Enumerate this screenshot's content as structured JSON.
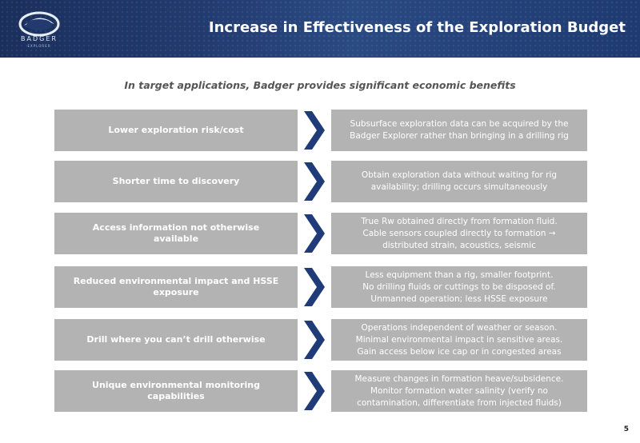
{
  "header": {
    "title": "Increase in Effectiveness of the Exploration Budget",
    "logo_text": "BADGER",
    "logo_subtext": "EXPLORER"
  },
  "subtitle": "In target applications, Badger provides significant economic benefits",
  "rows": [
    {
      "benefit": "Lower exploration risk/cost",
      "detail_lines": [
        "Subsurface exploration data can be acquired by the",
        "Badger Explorer rather than bringing in a drilling rig"
      ]
    },
    {
      "benefit": "Shorter time to discovery",
      "detail_lines": [
        "Obtain exploration data without waiting for rig",
        "availability; drilling occurs simultaneously"
      ]
    },
    {
      "benefit": "Access information not otherwise available",
      "detail_lines": [
        "True Rw obtained directly from formation fluid.",
        "Cable sensors coupled directly to formation →",
        "distributed strain, acoustics, seismic"
      ]
    },
    {
      "benefit": "Reduced environmental impact and HSSE exposure",
      "detail_lines": [
        "Less equipment than a rig, smaller footprint.",
        "No drilling fluids or cuttings to be disposed of.",
        "Unmanned operation; less HSSE exposure"
      ]
    },
    {
      "benefit": "Drill where you can’t drill otherwise",
      "detail_lines": [
        "Operations independent of weather or season.",
        "Minimal environmental impact in sensitive areas.",
        "Gain access below ice cap or in congested areas"
      ]
    },
    {
      "benefit": "Unique environmental monitoring capabilities",
      "detail_lines": [
        "Measure changes in formation heave/subsidence.",
        "Monitor formation water salinity (verify no",
        "contamination, differentiate from injected fluids)"
      ]
    }
  ],
  "page_number": "5",
  "colors": {
    "header_bg": "#223a6e",
    "box_bg": "#b3b3b3",
    "arrow": "#1f3c78"
  },
  "icons": {
    "arrow": "chevron-right-arrow",
    "logo": "badger-explorer-logo"
  }
}
